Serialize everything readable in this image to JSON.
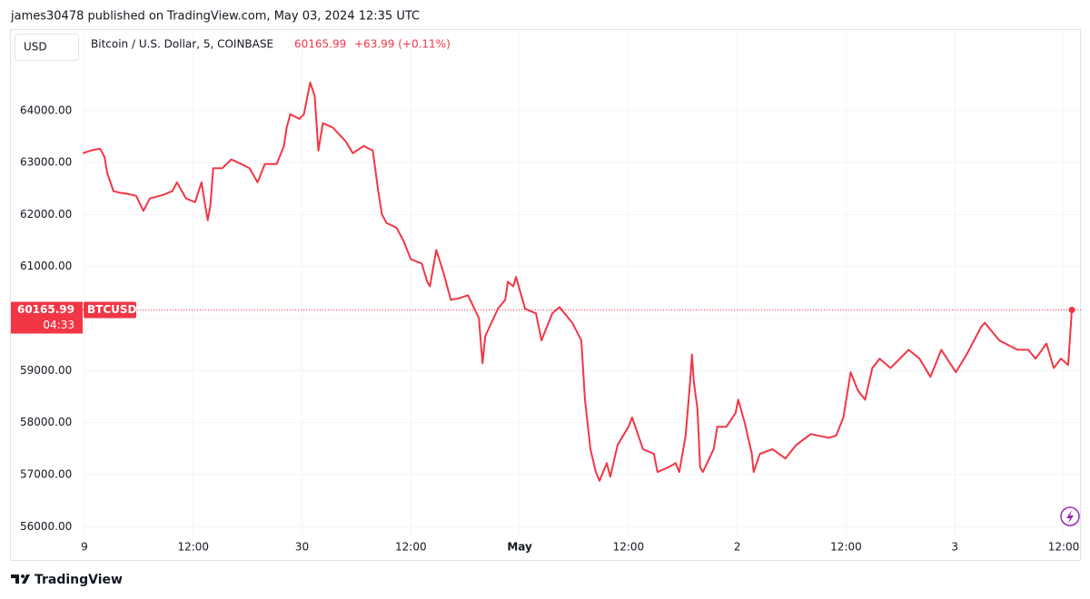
{
  "header": "james30478 published on TradingView.com, May 03, 2024 12:35 UTC",
  "currency": "USD",
  "chart_data": {
    "type": "line",
    "change": "+63.99 (+0.11%)",
    "symbol_label": "BTCUSD",
    "countdown": "04:33",
    "x": [
      -0.2,
      0.7,
      1.7,
      2.2,
      2.5,
      3.2,
      3.9,
      4.7,
      5.7,
      6.5,
      7.2,
      8.7,
      9.7,
      10.2,
      11.2,
      12.2,
      12.9,
      13.3,
      13.6,
      13.9,
      14.2,
      15.2,
      16.2,
      17.3,
      18.2,
      19.1,
      19.9,
      21.2,
      22.0,
      22.3,
      22.7,
      23.7,
      24.2,
      24.9,
      25.4,
      25.8,
      26.3,
      27.4,
      28.8,
      29.6,
      30.8,
      31.8,
      32.4,
      32.8,
      33.3,
      34.4,
      35.2,
      36.0,
      37.2,
      37.8,
      38.1,
      38.8,
      39.6,
      40.4,
      41.3,
      42.3,
      43.5,
      43.9,
      44.2,
      45.6,
      46.4,
      46.7,
      47.3,
      47.6,
      48.6,
      49.8,
      50.4,
      51.6,
      52.4,
      53.8,
      54.8,
      55.2,
      55.8,
      56.4,
      56.8,
      57.6,
      58.0,
      58.8,
      60.0,
      60.4,
      61.6,
      62.8,
      63.2,
      64.4,
      65.2,
      65.6,
      66.3,
      66.8,
      67.0,
      67.2,
      67.6,
      67.9,
      68.2,
      69.4,
      69.8,
      70.8,
      71.8,
      72.1,
      72.8,
      73.6,
      73.8,
      74.5,
      75.9,
      77.3,
      78.5,
      80.1,
      82.1,
      82.9,
      83.7,
      84.5,
      85.3,
      86.1,
      86.9,
      87.7,
      88.9,
      90.9,
      92.1,
      93.3,
      94.5,
      96.1,
      97.3,
      98.9,
      99.3,
      100.9,
      102.9,
      104.1,
      104.9,
      106.1,
      106.9,
      107.7,
      108.5,
      108.9
    ],
    "series": [
      {
        "name": "Bitcoin / U.S. Dollar, 5, COINBASE",
        "color": "#f23645",
        "values": [
          63180,
          63230,
          63270,
          63110,
          62800,
          62450,
          62420,
          62400,
          62360,
          62070,
          62310,
          62380,
          62450,
          62620,
          62310,
          62240,
          62620,
          62190,
          61890,
          62190,
          62890,
          62890,
          63060,
          62970,
          62890,
          62620,
          62970,
          62970,
          63320,
          63670,
          63930,
          63840,
          63930,
          64540,
          64280,
          63230,
          63760,
          63670,
          63410,
          63180,
          63320,
          63230,
          62450,
          62010,
          61840,
          61750,
          61490,
          61140,
          61060,
          60710,
          60620,
          61320,
          60880,
          60360,
          60390,
          60450,
          60010,
          59140,
          59660,
          60190,
          60360,
          60710,
          60620,
          60800,
          60190,
          60100,
          59580,
          60100,
          60220,
          59920,
          59580,
          58440,
          57490,
          57050,
          56880,
          57220,
          56960,
          57570,
          57920,
          58100,
          57490,
          57400,
          57050,
          57140,
          57220,
          57050,
          57750,
          58790,
          59310,
          58790,
          58270,
          57140,
          57050,
          57490,
          57920,
          57920,
          58180,
          58440,
          58010,
          57400,
          57050,
          57400,
          57490,
          57310,
          57570,
          57780,
          57710,
          57750,
          58100,
          58970,
          58620,
          58440,
          59050,
          59230,
          59050,
          59400,
          59230,
          58880,
          59400,
          58970,
          59310,
          59840,
          59920,
          59580,
          59400,
          59400,
          59230,
          59520,
          59050,
          59230,
          59110,
          60165.99
        ]
      }
    ],
    "xlim": [
      -0.2,
      109.9
    ],
    "ylim": [
      55830,
      65550
    ],
    "xticks": [
      {
        "value": 0,
        "label": "9"
      },
      {
        "value": 12,
        "label": "12:00"
      },
      {
        "value": 24,
        "label": "30"
      },
      {
        "value": 36,
        "label": "12:00"
      },
      {
        "value": 48,
        "label": "May"
      },
      {
        "value": 60,
        "label": "12:00"
      },
      {
        "value": 72,
        "label": "2"
      },
      {
        "value": 84,
        "label": "12:00"
      },
      {
        "value": 96,
        "label": "3"
      },
      {
        "value": 108,
        "label": "12:00"
      }
    ],
    "yticks": [
      {
        "value": 56000,
        "label": "56000.00"
      },
      {
        "value": 57000,
        "label": "57000.00"
      },
      {
        "value": 58000,
        "label": "58000.00"
      },
      {
        "value": 59000,
        "label": "59000.00"
      },
      {
        "value": 60000,
        "label": "60000.00"
      },
      {
        "value": 61000,
        "label": "61000.00"
      },
      {
        "value": 62000,
        "label": "62000.00"
      },
      {
        "value": 63000,
        "label": "63000.00"
      },
      {
        "value": 64000,
        "label": "64000.00"
      }
    ],
    "grid": true
  },
  "footer": {
    "brand": "TradingView"
  }
}
